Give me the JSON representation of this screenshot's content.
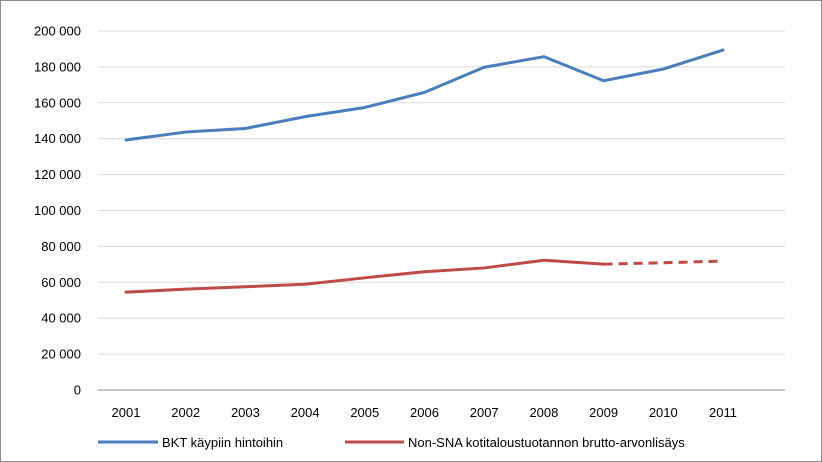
{
  "chart_data": {
    "type": "line",
    "title": "",
    "xlabel": "",
    "ylabel": "",
    "categories": [
      "2001",
      "2002",
      "2003",
      "2004",
      "2005",
      "2006",
      "2007",
      "2008",
      "2009",
      "2010",
      "2011"
    ],
    "ylim": [
      0,
      200000
    ],
    "y_ticks": [
      0,
      20000,
      40000,
      60000,
      80000,
      100000,
      120000,
      140000,
      160000,
      180000,
      200000
    ],
    "y_tick_labels": [
      "0",
      "20 000",
      "40 000",
      "60 000",
      "80 000",
      "100 000",
      "120 000",
      "140 000",
      "160 000",
      "180 000",
      "200 000"
    ],
    "grid": "horizontal",
    "legend_position": "bottom",
    "series": [
      {
        "name": "BKT käypiin hintoihin",
        "color": "#4a7ebb",
        "values": [
          139300,
          143700,
          145700,
          152300,
          157400,
          165800,
          179800,
          185700,
          172300,
          178800,
          189400
        ],
        "style": "solid"
      },
      {
        "name": "Non-SNA kotitaloustuotannon brutto-arvonlisäys",
        "color": "#be4b48",
        "values": [
          54500,
          56200,
          57500,
          58900,
          62500,
          65900,
          68000,
          72300,
          70100,
          70900,
          71800
        ],
        "style": "solid",
        "dashed_from_index": 8
      }
    ]
  }
}
